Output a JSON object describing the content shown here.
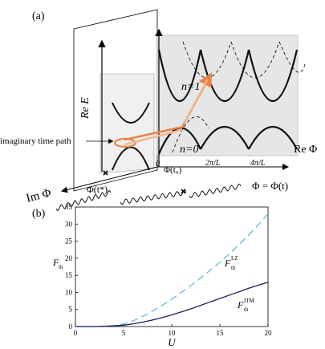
{
  "panel_a": {
    "label": "(a)",
    "y_axis_label": "Re E",
    "x_axis_label": "Re Φ",
    "depth_axis_label": "Im Φ",
    "band_label_upper": "n=1",
    "band_label_lower": "n=0",
    "imag_path_label": "imaginary time path",
    "ticks": [
      "0",
      "Φ(t₀)",
      "2π/L",
      "4π/L"
    ],
    "phi_t_star": "Φ(t*)",
    "phi_relation": "Φ = Φ(t)",
    "colors": {
      "band": "#000000",
      "path": "#e8834a",
      "path_light": "#f3b890",
      "panel_fill": "#e6e6e6"
    }
  },
  "panel_b": {
    "label": "(b)",
    "chart_data": {
      "type": "line",
      "xlabel": "U",
      "ylabel": "F_th",
      "xlim": [
        0,
        20
      ],
      "ylim": [
        0,
        35
      ],
      "x_ticks": [
        "0",
        "5",
        "10",
        "15",
        "20"
      ],
      "y_ticks": [
        "0",
        "5",
        "10",
        "15",
        "20",
        "25",
        "30",
        "35"
      ],
      "series": [
        {
          "name": "F_th^LZ",
          "color": "#62bcd6",
          "style": "dashed",
          "x": [
            0,
            1,
            2,
            3,
            4,
            5,
            6,
            7,
            8,
            9,
            10,
            11,
            12,
            13,
            14,
            15,
            16,
            17,
            18,
            19,
            20
          ],
          "y": [
            0,
            0,
            0,
            0.1,
            0.3,
            0.8,
            1.7,
            3.0,
            4.5,
            6.2,
            8.0,
            10.0,
            12.0,
            14.2,
            16.5,
            18.8,
            21.3,
            24.0,
            26.8,
            29.8,
            33.0
          ]
        },
        {
          "name": "F_th^ITM",
          "color": "#1c1c5c",
          "style": "solid",
          "x": [
            0,
            1,
            2,
            3,
            4,
            5,
            6,
            7,
            8,
            9,
            10,
            11,
            12,
            13,
            14,
            15,
            16,
            17,
            18,
            19,
            20
          ],
          "y": [
            0,
            0,
            0,
            0.1,
            0.2,
            0.4,
            0.8,
            1.3,
            1.9,
            2.6,
            3.4,
            4.3,
            5.2,
            6.2,
            7.2,
            8.2,
            9.2,
            10.2,
            11.2,
            12.1,
            13.0
          ]
        }
      ]
    },
    "label_lz_main": "F",
    "label_lz_sub": "th",
    "label_lz_sup": "LZ",
    "label_itm_main": "F",
    "label_itm_sub": "th",
    "label_itm_sup": "ITM"
  }
}
